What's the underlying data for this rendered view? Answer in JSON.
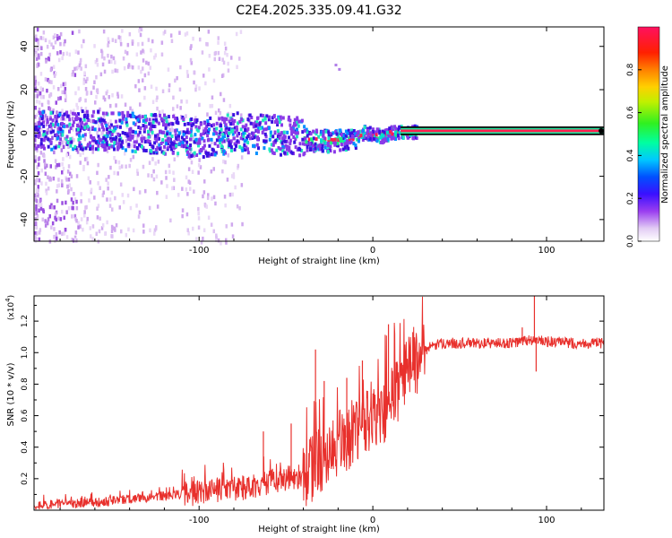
{
  "title": "C2E4.2025.335.09.41.G32",
  "chart_data": [
    {
      "type": "heatmap",
      "name": "spectrogram",
      "xlabel": "Height of straight line (km)",
      "ylabel": "Frequency (Hz)",
      "xlim": [
        -195,
        133
      ],
      "ylim": [
        -50,
        49
      ],
      "xticks": [
        -100,
        0,
        100
      ],
      "yticks": [
        -40,
        -20,
        0,
        20,
        40
      ],
      "band_center_hz": [
        [
          -195,
          2
        ],
        [
          -150,
          2
        ],
        [
          -120,
          0
        ],
        [
          -100,
          -2
        ],
        [
          -80,
          1
        ],
        [
          -60,
          0
        ],
        [
          -45,
          -1
        ],
        [
          -35,
          -3
        ],
        [
          -20,
          -3
        ],
        [
          -12,
          -2
        ],
        [
          -5,
          1
        ],
        [
          5,
          -1
        ],
        [
          10,
          1
        ],
        [
          20,
          1
        ],
        [
          133,
          1
        ]
      ],
      "colorbar": {
        "label": "Normalized spectral amplitude",
        "range": [
          0.0,
          1.0
        ],
        "ticks": [
          "0.0",
          "0.2",
          "0.4",
          "0.6",
          "0.8"
        ]
      }
    },
    {
      "type": "line",
      "name": "snr",
      "xlabel": "Height of straight line (km)",
      "ylabel": "SNR (10 * v/v)",
      "y_multiplier": "(x10",
      "y_exponent": "4",
      "xlim": [
        -195,
        133
      ],
      "ylim": [
        0.0,
        1.36
      ],
      "xticks": [
        -100,
        0,
        100
      ],
      "yticks": [
        "0.2",
        "0.4",
        "0.6",
        "0.8",
        "1.0",
        "1.2"
      ],
      "color": "#e8302c",
      "trend": {
        "x": [
          -195,
          -175,
          -160,
          -140,
          -120,
          -100,
          -85,
          -70,
          -60,
          -50,
          -40,
          -30,
          -20,
          -10,
          0,
          10,
          20,
          30,
          40,
          60,
          80,
          90,
          100,
          115,
          133
        ],
        "y": [
          0.03,
          0.04,
          0.05,
          0.07,
          0.09,
          0.11,
          0.13,
          0.15,
          0.18,
          0.2,
          0.22,
          0.32,
          0.42,
          0.5,
          0.56,
          0.68,
          0.88,
          1.02,
          1.06,
          1.06,
          1.06,
          1.08,
          1.07,
          1.06,
          1.06
        ]
      },
      "spikes": [
        {
          "x": -63,
          "y": 0.5
        },
        {
          "x": -47,
          "y": 0.55
        },
        {
          "x": -33,
          "y": 1.02
        },
        {
          "x": -28,
          "y": 0.82
        },
        {
          "x": -15,
          "y": 0.84
        },
        {
          "x": -6,
          "y": 0.95
        },
        {
          "x": 9,
          "y": 1.18
        },
        {
          "x": 23,
          "y": 1.13
        },
        {
          "x": 86,
          "y": 1.16
        },
        {
          "x": 93,
          "y": 1.38
        },
        {
          "x": 94,
          "y": 0.88
        }
      ]
    }
  ]
}
